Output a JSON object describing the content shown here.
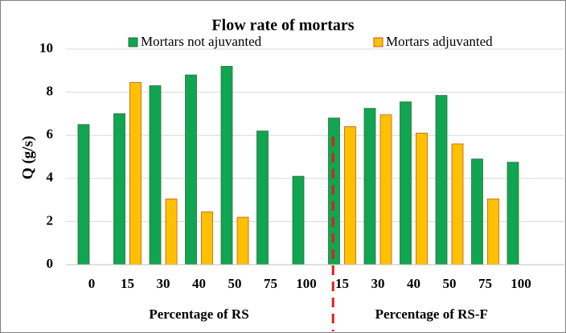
{
  "chart_data": {
    "type": "bar",
    "title": "Flow rate of mortars",
    "y_label": "Q (g/s)",
    "groups": [
      {
        "label": "Percentage of RS",
        "categories": [
          "0",
          "15",
          "30",
          "40",
          "50",
          "75",
          "100"
        ]
      },
      {
        "label": "Percentage of RS-F",
        "categories": [
          "15",
          "30",
          "40",
          "50",
          "75",
          "100"
        ]
      }
    ],
    "series": [
      {
        "name": "Mortars not ajuvanted",
        "color": "#10a550",
        "values": [
          6.5,
          7.0,
          8.3,
          8.8,
          9.2,
          6.2,
          4.1,
          6.8,
          7.25,
          7.55,
          7.85,
          4.9,
          4.75
        ]
      },
      {
        "name": "Mortars adjuvanted",
        "color": "#ffc000",
        "values": [
          null,
          8.45,
          3.05,
          2.45,
          2.2,
          null,
          null,
          6.4,
          6.95,
          6.1,
          5.6,
          3.05,
          null
        ]
      }
    ],
    "ylim": [
      0,
      10
    ],
    "yticks": [
      0,
      2,
      4,
      6,
      8,
      10
    ],
    "grid": true,
    "separator_color": "#e31b1b"
  }
}
